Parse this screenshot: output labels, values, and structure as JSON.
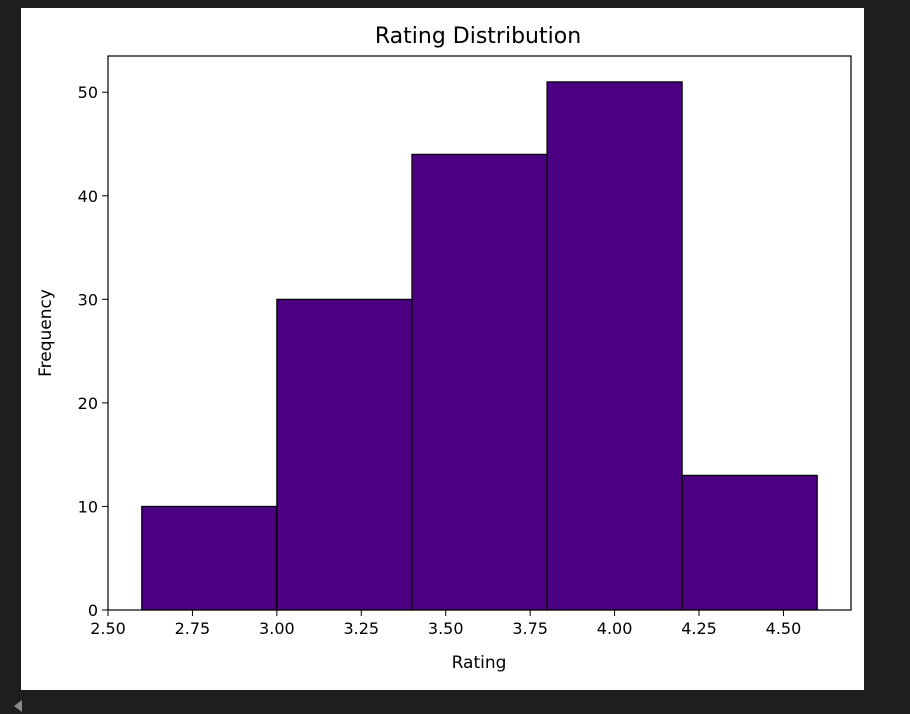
{
  "chart_data": {
    "type": "bar",
    "title": "Rating Distribution",
    "xlabel": "Rating",
    "ylabel": "Frequency",
    "bins": [
      {
        "start": 2.6,
        "end": 3.0,
        "count": 10
      },
      {
        "start": 3.0,
        "end": 3.4,
        "count": 30
      },
      {
        "start": 3.4,
        "end": 3.8,
        "count": 44
      },
      {
        "start": 3.8,
        "end": 4.2,
        "count": 51
      },
      {
        "start": 4.2,
        "end": 4.6,
        "count": 13
      }
    ],
    "xlim": [
      2.5,
      4.7
    ],
    "ylim": [
      0,
      53.5
    ],
    "xticks": [
      "2.50",
      "2.75",
      "3.00",
      "3.25",
      "3.50",
      "3.75",
      "4.00",
      "4.25",
      "4.50"
    ],
    "yticks": [
      "0",
      "10",
      "20",
      "30",
      "40",
      "50"
    ],
    "grid": false,
    "bar_color": "#4b0082",
    "edge_color": "#000000"
  }
}
